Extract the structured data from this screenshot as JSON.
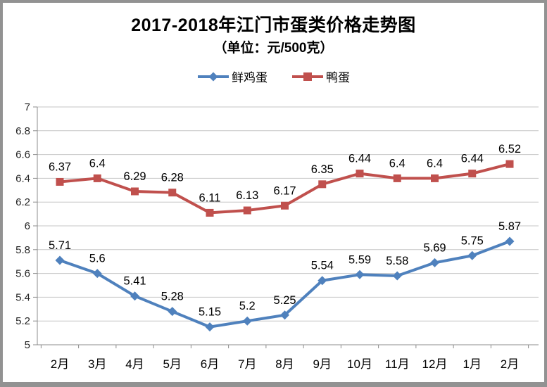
{
  "chart_data": {
    "type": "line",
    "title": "2017-2018年江门市蛋类价格走势图",
    "subtitle": "（单位：元/500克）",
    "categories": [
      "2月",
      "3月",
      "4月",
      "5月",
      "6月",
      "7月",
      "8月",
      "9月",
      "10月",
      "11月",
      "12月",
      "1月",
      "2月"
    ],
    "series": [
      {
        "name": "鲜鸡蛋",
        "color": "#4F81BD",
        "marker": "diamond",
        "values": [
          5.71,
          5.6,
          5.41,
          5.28,
          5.15,
          5.2,
          5.25,
          5.54,
          5.59,
          5.58,
          5.69,
          5.75,
          5.87
        ]
      },
      {
        "name": "鸭蛋",
        "color": "#C0504D",
        "marker": "square",
        "values": [
          6.37,
          6.4,
          6.29,
          6.28,
          6.11,
          6.13,
          6.17,
          6.35,
          6.44,
          6.4,
          6.4,
          6.44,
          6.52
        ]
      }
    ],
    "ylim": [
      5,
      7
    ],
    "ytick_step": 0.2,
    "grid": true,
    "data_labels": true,
    "legend_position": "top",
    "colors": {
      "grid": "#C6C6C6",
      "axis": "#8C8C8C",
      "tick_text": "#262626",
      "data_label_text": "#000000",
      "frame_border": "#929292"
    }
  }
}
